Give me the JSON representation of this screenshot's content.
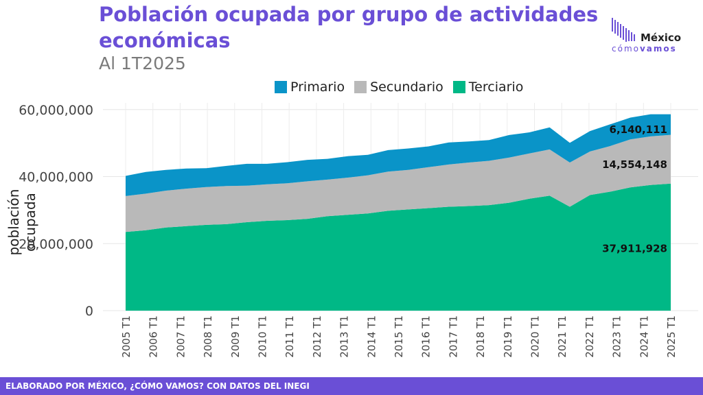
{
  "header": {
    "title": "Población ocupada por grupo de actividades económicas",
    "subtitle": "Al 1T2025"
  },
  "logo": {
    "name": "México",
    "tagline_prefix": "cómo",
    "tagline_suffix": "vamos",
    "color": "#6a4fd6"
  },
  "footer": {
    "text": "ELABORADO POR MÉXICO, ¿CÓMO VAMOS? CON DATOS DEL INEGI"
  },
  "chart_data": {
    "type": "area",
    "stacked": true,
    "ylabel": "población ocupada",
    "xlabel": "",
    "ylim": [
      0,
      62000000
    ],
    "yticks": [
      0,
      20000000,
      40000000,
      60000000
    ],
    "ytick_labels": [
      "0",
      "20,000,000",
      "40,000,000",
      "60,000,000"
    ],
    "xtick_labels": [
      "2005 T1",
      "2006 T1",
      "2007 T1",
      "2008 T1",
      "2009 T1",
      "2010 T1",
      "2011 T1",
      "2012 T1",
      "2013 T1",
      "2014 T1",
      "2015 T1",
      "2016 T1",
      "2017 T1",
      "2018 T1",
      "2019 T1",
      "2020 T1",
      "2021 T1",
      "2022 T1",
      "2023 T1",
      "2024 T1",
      "2025 T1"
    ],
    "grid": true,
    "legend_position": "top",
    "series": [
      {
        "name": "Terciario",
        "color": "#00b886",
        "values": [
          23.5,
          24.0,
          24.8,
          25.2,
          25.6,
          25.8,
          26.4,
          26.8,
          27.0,
          27.4,
          28.2,
          28.6,
          29.0,
          29.8,
          30.2,
          30.6,
          31.0,
          31.2,
          31.5,
          32.2,
          33.4,
          34.3,
          31.0,
          34.5,
          35.5,
          36.8,
          37.5,
          37.911928
        ]
      },
      {
        "name": "Secundario",
        "color": "#b9b9b9",
        "values": [
          10.7,
          10.9,
          11.0,
          11.2,
          11.3,
          11.4,
          10.9,
          10.9,
          11.0,
          11.2,
          10.9,
          11.1,
          11.4,
          11.7,
          11.8,
          12.2,
          12.6,
          13.0,
          13.2,
          13.5,
          13.5,
          13.8,
          13.2,
          13.0,
          13.6,
          14.3,
          14.5,
          14.554148
        ]
      },
      {
        "name": "Primario",
        "color": "#0a94c8",
        "values": [
          6.0,
          6.5,
          6.2,
          6.0,
          5.6,
          6.0,
          6.5,
          6.1,
          6.3,
          6.4,
          6.2,
          6.4,
          6.1,
          6.4,
          6.4,
          6.2,
          6.6,
          6.3,
          6.2,
          6.7,
          6.3,
          6.6,
          5.9,
          6.1,
          6.5,
          6.5,
          6.6,
          6.140111
        ]
      }
    ],
    "data_labels": [
      "37,911,928",
      "14,554,148",
      "6,140,111"
    ],
    "values_unit": "millions"
  }
}
